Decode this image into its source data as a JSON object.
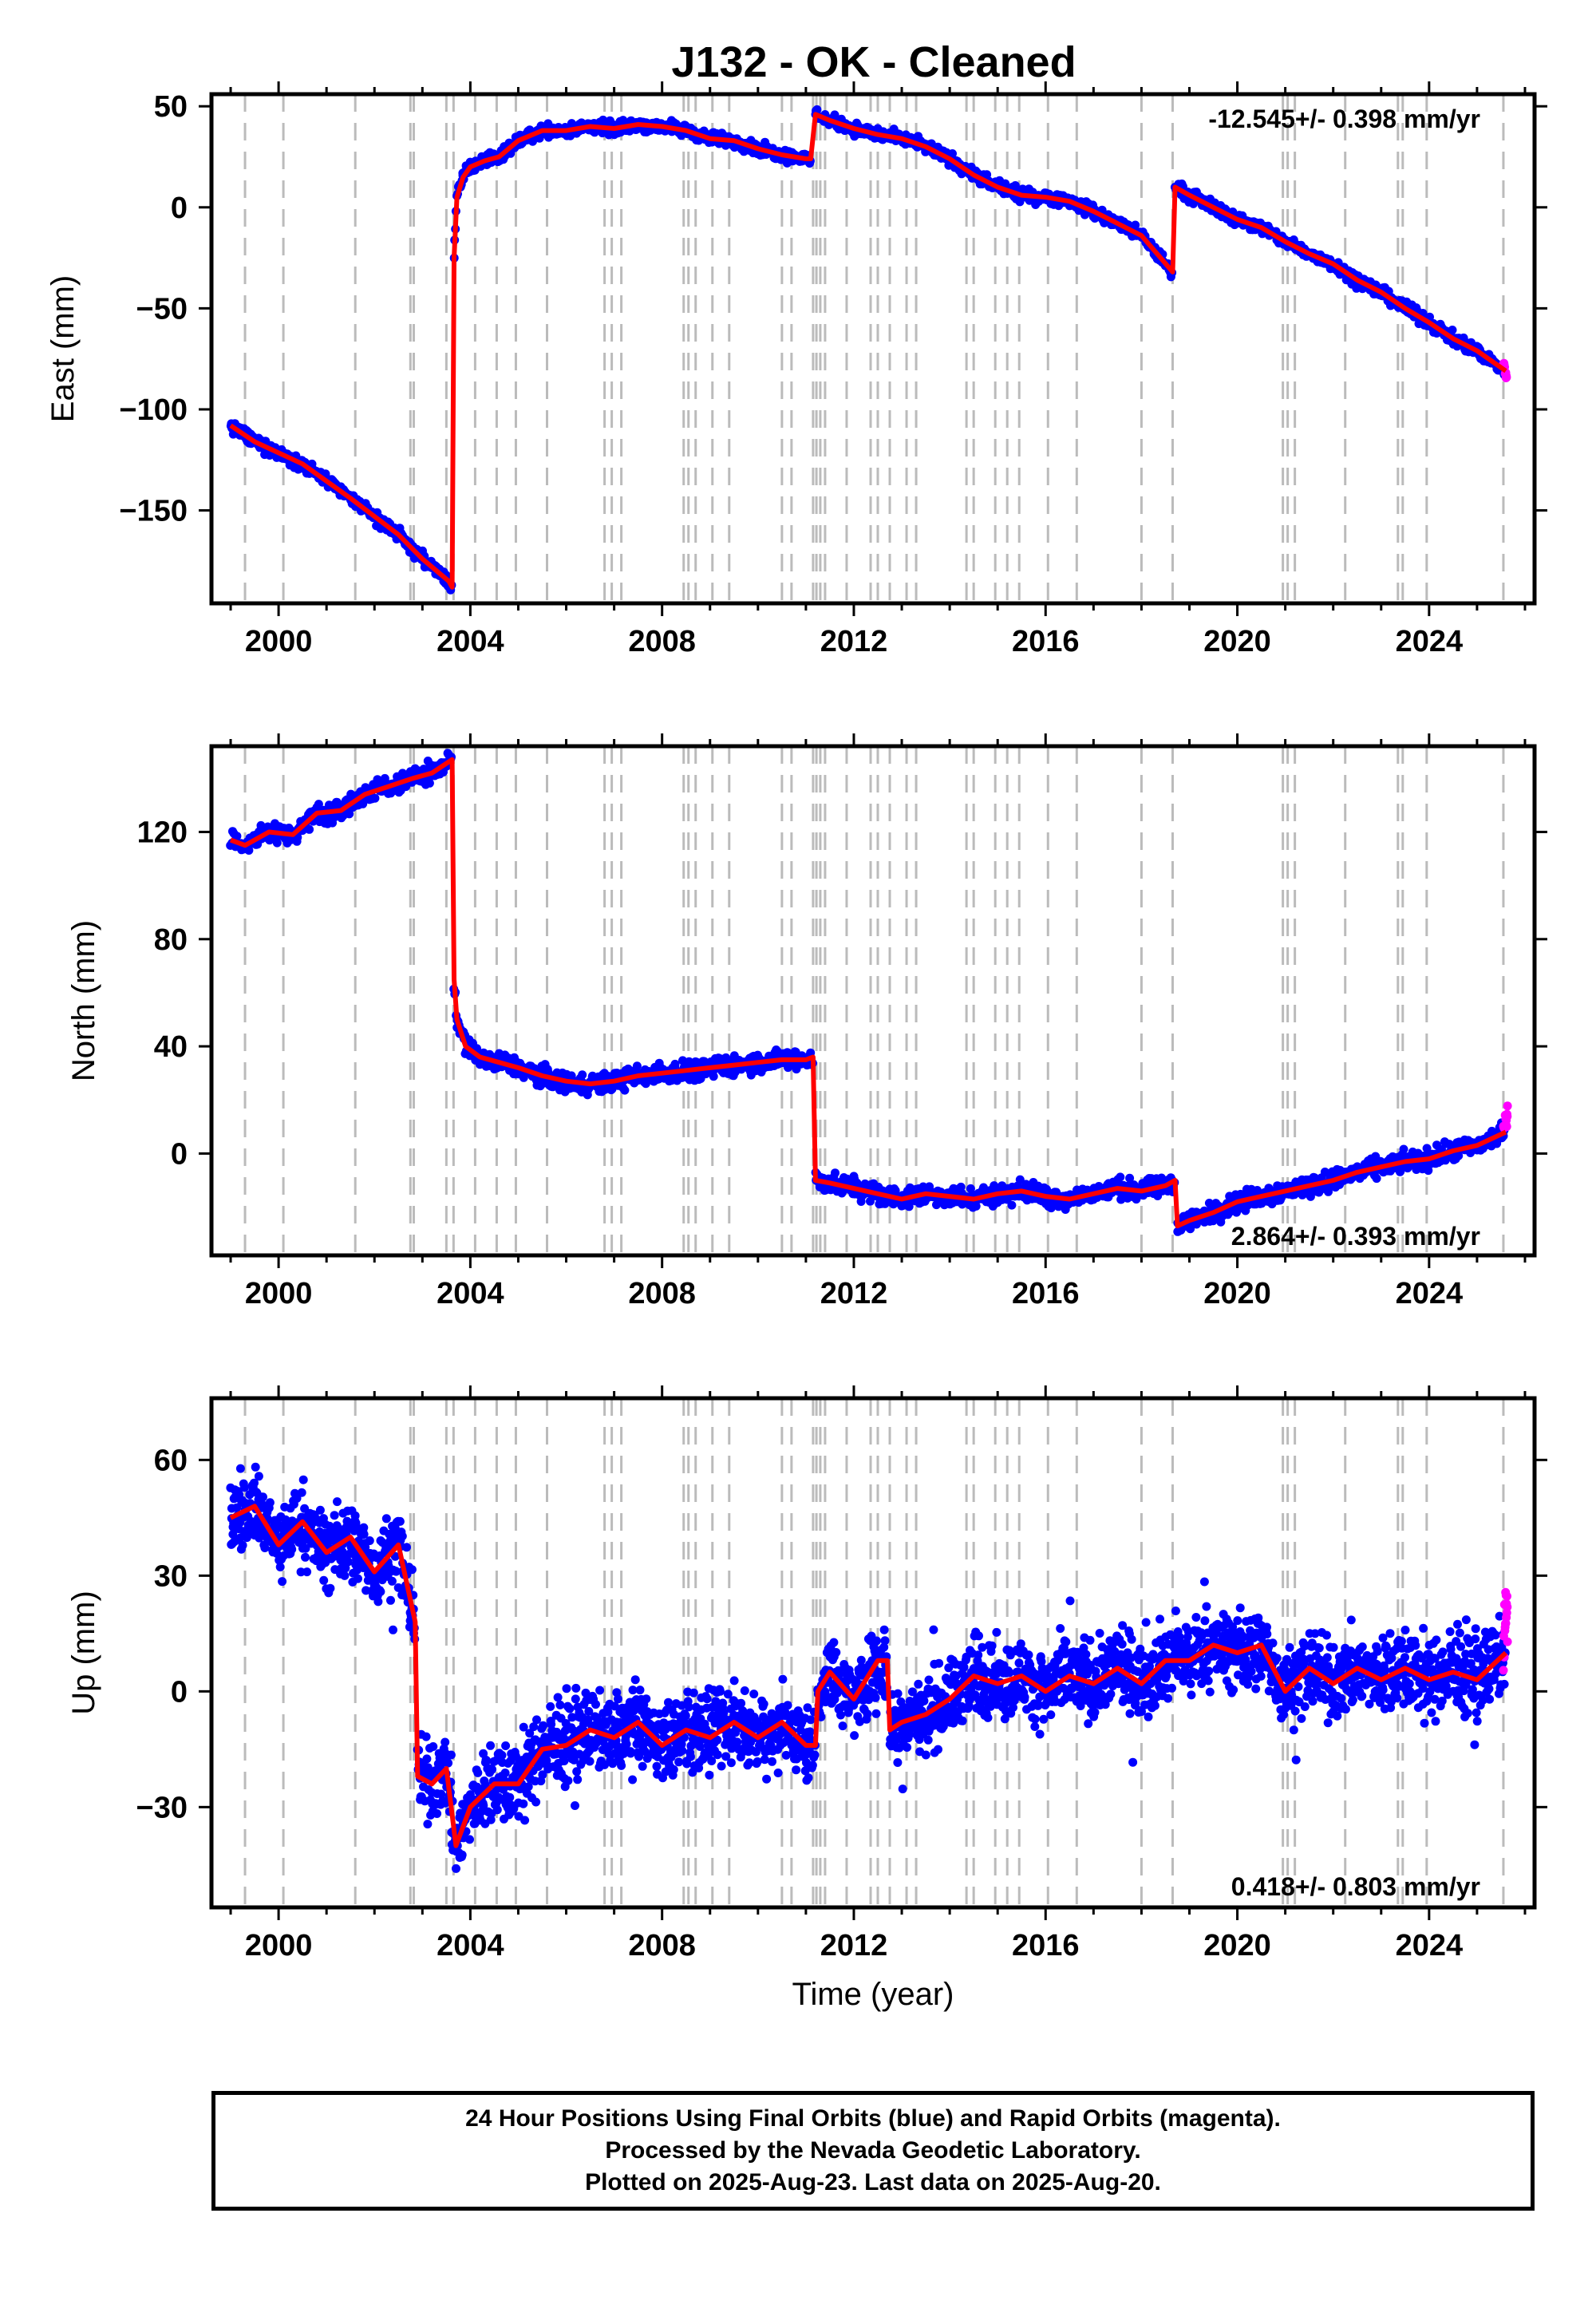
{
  "title": "J132  - OK - Cleaned",
  "footer": {
    "line1": "24 Hour Positions Using Final Orbits (blue) and Rapid Orbits (magenta).",
    "line2": "Processed by the Nevada Geodetic Laboratory.",
    "line3": "Plotted on 2025-Aug-23. Last data on 2025-Aug-20."
  },
  "colors": {
    "final_orbits": "#0000ff",
    "rapid_orbits": "#ff00ff",
    "model": "#ff0000",
    "event_lines": "#bbbbbb",
    "frame": "#000000"
  },
  "chart_data": [
    {
      "type": "scatter",
      "ylabel": "East (mm)",
      "xlabel": "",
      "rate": "-12.545+/- 0.398 mm/yr",
      "xlim": [
        1998.6,
        2026.2
      ],
      "ylim": [
        -196,
        56
      ],
      "xticks": [
        2000,
        2004,
        2008,
        2012,
        2016,
        2020,
        2024
      ],
      "yticks": [
        50,
        0,
        -50,
        -100,
        -150
      ],
      "ytick_labels": [
        "50",
        "0",
        "−50",
        "−100",
        "−150"
      ],
      "grid": false,
      "series": [
        {
          "role": "final",
          "segments": [
            {
              "x": [
                1999.0,
                1999.5,
                2000.5,
                2001.5,
                2002.5,
                2003.0,
                2003.55,
                2003.62
              ],
              "y": [
                -108,
                -116,
                -127,
                -144,
                -162,
                -174,
                -185,
                -188
              ]
            },
            {
              "x": [
                2003.66,
                2003.72,
                2003.85,
                2004.0,
                2004.3,
                2004.6,
                2005.0,
                2005.5,
                2006.0,
                2006.5,
                2007.0,
                2007.5,
                2008.0,
                2008.5,
                2009.0,
                2009.5,
                2010.0,
                2010.5,
                2011.0,
                2011.1
              ],
              "y": [
                -25,
                5,
                15,
                20,
                23,
                25,
                33,
                38,
                38,
                40,
                39,
                41,
                40,
                38,
                34,
                33,
                29,
                26,
                24,
                24
              ]
            },
            {
              "x": [
                2011.2,
                2011.5,
                2012.0,
                2012.5,
                2013.0,
                2013.5,
                2014.0,
                2014.5,
                2015.0,
                2015.5,
                2016.0,
                2016.5,
                2017.0,
                2017.5,
                2018.0,
                2018.4,
                2018.65
              ],
              "y": [
                46,
                43,
                39,
                36,
                34,
                30,
                24,
                16,
                10,
                6,
                5,
                3,
                -2,
                -8,
                -14,
                -25,
                -32
              ]
            },
            {
              "x": [
                2018.7,
                2019.0,
                2019.5,
                2020.0,
                2020.5,
                2021.0,
                2021.5,
                2022.0,
                2022.5,
                2023.0,
                2023.5,
                2024.0,
                2024.5,
                2025.0,
                2025.6
              ],
              "y": [
                10,
                6,
                0,
                -6,
                -10,
                -17,
                -23,
                -28,
                -36,
                -42,
                -50,
                -57,
                -65,
                -71,
                -81
              ]
            }
          ]
        },
        {
          "role": "rapid",
          "segments": [
            {
              "x": [
                2025.55,
                2025.6,
                2025.62
              ],
              "y": [
                -79,
                -82,
                -85
              ]
            }
          ]
        }
      ]
    },
    {
      "type": "scatter",
      "ylabel": "North (mm)",
      "xlabel": "",
      "rate": "2.864+/- 0.393 mm/yr",
      "xlim": [
        1998.6,
        2026.2
      ],
      "ylim": [
        -38,
        152
      ],
      "xticks": [
        2000,
        2004,
        2008,
        2012,
        2016,
        2020,
        2024
      ],
      "yticks": [
        120,
        80,
        40,
        0
      ],
      "ytick_labels": [
        "120",
        "80",
        "40",
        "0"
      ],
      "grid": false,
      "series": [
        {
          "role": "final",
          "segments": [
            {
              "x": [
                1999.0,
                1999.3,
                1999.8,
                2000.3,
                2000.8,
                2001.3,
                2001.8,
                2002.3,
                2002.8,
                2003.2,
                2003.62
              ],
              "y": [
                117,
                115,
                120,
                119,
                127,
                128,
                134,
                137,
                140,
                142,
                147
              ]
            },
            {
              "x": [
                2003.66,
                2003.72,
                2003.9,
                2004.2,
                2004.6,
                2005.0,
                2005.5,
                2006.0,
                2006.5,
                2007.0,
                2007.5,
                2008.0,
                2008.5,
                2009.0,
                2009.5,
                2010.0,
                2010.5,
                2011.0,
                2011.15
              ],
              "y": [
                65,
                50,
                40,
                36,
                34,
                32,
                29,
                27,
                26,
                27,
                29,
                30,
                31,
                32,
                33,
                34,
                35,
                35,
                36
              ]
            },
            {
              "x": [
                2011.2,
                2011.5,
                2012.0,
                2012.5,
                2013.0,
                2013.5,
                2014.0,
                2014.5,
                2015.0,
                2015.5,
                2016.0,
                2016.5,
                2017.0,
                2017.5,
                2018.0,
                2018.5,
                2018.7
              ],
              "y": [
                -10,
                -11,
                -13,
                -15,
                -17,
                -15,
                -16,
                -17,
                -15,
                -14,
                -16,
                -17,
                -15,
                -13,
                -14,
                -12,
                -10
              ]
            },
            {
              "x": [
                2018.75,
                2019.0,
                2019.5,
                2020.0,
                2020.5,
                2021.0,
                2021.5,
                2022.0,
                2022.5,
                2023.0,
                2023.5,
                2024.0,
                2024.5,
                2025.0,
                2025.6
              ],
              "y": [
                -27,
                -25,
                -22,
                -18,
                -16,
                -14,
                -12,
                -10,
                -7,
                -5,
                -3,
                -2,
                1,
                3,
                8
              ]
            }
          ]
        },
        {
          "role": "rapid",
          "segments": [
            {
              "x": [
                2025.55,
                2025.6,
                2025.62,
                2025.64
              ],
              "y": [
                9,
                12,
                15,
                17
              ]
            }
          ]
        }
      ]
    },
    {
      "type": "scatter",
      "ylabel": "Up (mm)",
      "xlabel": "Time (year)",
      "rate": "0.418+/- 0.803 mm/yr",
      "xlim": [
        1998.6,
        2026.2
      ],
      "ylim": [
        -56,
        76
      ],
      "xticks": [
        2000,
        2004,
        2008,
        2012,
        2016,
        2020,
        2024
      ],
      "yticks": [
        60,
        30,
        0,
        -30
      ],
      "ytick_labels": [
        "60",
        "30",
        "0",
        "−30"
      ],
      "grid": false,
      "series": [
        {
          "role": "final",
          "segments": [
            {
              "x": [
                1999.0,
                1999.5,
                2000.0,
                2000.5,
                2001.0,
                2001.5,
                2002.0,
                2002.5,
                2002.85
              ],
              "y": [
                45,
                48,
                38,
                44,
                36,
                40,
                31,
                38,
                18
              ]
            },
            {
              "x": [
                2002.9,
                2003.2,
                2003.5,
                2003.7,
                2004.0,
                2004.5,
                2005.0,
                2005.5,
                2006.0,
                2006.5,
                2007.0,
                2007.5,
                2008.0,
                2008.5,
                2009.0,
                2009.5,
                2010.0,
                2010.5,
                2011.0,
                2011.2
              ],
              "y": [
                -22,
                -24,
                -20,
                -40,
                -30,
                -24,
                -24,
                -15,
                -14,
                -10,
                -12,
                -8,
                -14,
                -10,
                -12,
                -8,
                -12,
                -8,
                -14,
                -14
              ]
            },
            {
              "x": [
                2011.25,
                2011.5,
                2012.0,
                2012.5,
                2012.7
              ],
              "y": [
                0,
                5,
                -2,
                8,
                8
              ]
            },
            {
              "x": [
                2012.75,
                2013.0,
                2013.5,
                2014.0,
                2014.5,
                2015.0,
                2015.5,
                2016.0,
                2016.5,
                2017.0,
                2017.5,
                2018.0,
                2018.5,
                2019.0,
                2019.5,
                2020.0,
                2020.5,
                2021.0,
                2021.5,
                2022.0,
                2022.5,
                2023.0,
                2023.5,
                2024.0,
                2024.5,
                2025.0,
                2025.6
              ],
              "y": [
                -10,
                -8,
                -6,
                -2,
                4,
                2,
                4,
                0,
                4,
                2,
                6,
                2,
                8,
                8,
                12,
                10,
                12,
                0,
                6,
                2,
                6,
                3,
                6,
                3,
                5,
                3,
                10
              ]
            }
          ]
        },
        {
          "role": "rapid",
          "segments": [
            {
              "x": [
                2025.55,
                2025.58,
                2025.6,
                2025.62,
                2025.64
              ],
              "y": [
                10,
                14,
                20,
                25,
                12
              ]
            }
          ]
        }
      ]
    }
  ]
}
